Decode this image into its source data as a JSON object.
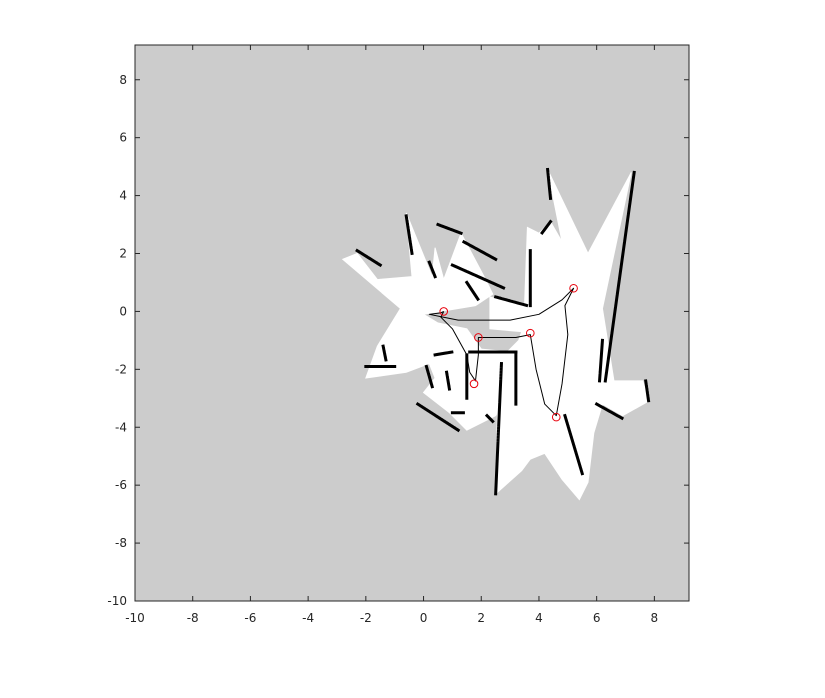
{
  "chart_data": {
    "type": "scatter",
    "title": "",
    "xlabel": "",
    "ylabel": "",
    "xlim": [
      -10,
      9.2
    ],
    "ylim": [
      -10,
      9.2
    ],
    "x_ticks": [
      -10,
      -8,
      -6,
      -4,
      -2,
      0,
      2,
      4,
      6,
      8
    ],
    "y_ticks": [
      -10,
      -8,
      -6,
      -4,
      -2,
      0,
      2,
      4,
      6,
      8
    ],
    "grid": false,
    "colors": {
      "unknown": "#cccccc",
      "free": "#ffffff",
      "occupied": "#000000",
      "path": "#000000",
      "waypoint": "#e8000b",
      "axis": "#262626"
    },
    "free_space": [
      [
        [
          0,
          -0.1
        ],
        [
          1.8,
          0.2
        ],
        [
          2.4,
          0.6
        ],
        [
          2.1,
          1.2
        ],
        [
          1.3,
          2.7
        ],
        [
          0.7,
          1.1
        ],
        [
          0.4,
          2.2
        ],
        [
          0.3,
          1.2
        ],
        [
          -0.6,
          3.4
        ],
        [
          -0.4,
          1.2
        ],
        [
          -1.6,
          1.1
        ],
        [
          -2.3,
          2.0
        ],
        [
          -2.8,
          1.8
        ],
        [
          -0.8,
          0.1
        ],
        [
          -1.6,
          -1.2
        ],
        [
          -2.0,
          -2.3
        ],
        [
          -0.6,
          -2.1
        ],
        [
          0.2,
          -1.8
        ],
        [
          0.4,
          -2.3
        ],
        [
          0,
          -2.8
        ],
        [
          0.9,
          -3.5
        ],
        [
          1.5,
          -4.1
        ],
        [
          2.5,
          -3.6
        ],
        [
          3,
          -2.7
        ],
        [
          3,
          -1.4
        ],
        [
          2,
          -1.3
        ],
        [
          1.5,
          -0.6
        ],
        [
          0.5,
          -0.4
        ]
      ],
      [
        [
          2.3,
          0.5
        ],
        [
          3.5,
          0.2
        ],
        [
          3.6,
          2.9
        ],
        [
          4.0,
          2.7
        ],
        [
          4.4,
          3.1
        ],
        [
          4.8,
          2.4
        ],
        [
          4.3,
          4.9
        ],
        [
          5.7,
          2.0
        ],
        [
          7.2,
          4.8
        ],
        [
          6.2,
          0.1
        ],
        [
          6.6,
          -2.4
        ],
        [
          7.6,
          -2.4
        ],
        [
          7.8,
          -3.1
        ],
        [
          6.9,
          -3.6
        ],
        [
          6.2,
          -3.2
        ],
        [
          5.9,
          -4.2
        ],
        [
          5.7,
          -5.9
        ],
        [
          5.4,
          -6.5
        ],
        [
          4.8,
          -5.8
        ],
        [
          4.2,
          -4.9
        ],
        [
          3.7,
          -5.1
        ],
        [
          3.4,
          -5.5
        ],
        [
          2.5,
          -6.3
        ],
        [
          2.6,
          -1.7
        ],
        [
          3.3,
          -1.0
        ],
        [
          3.4,
          -0.7
        ],
        [
          2.3,
          -0.6
        ]
      ]
    ],
    "walls": [
      [
        [
          3.7,
          2.1
        ],
        [
          3.7,
          0.2
        ]
      ],
      [
        [
          4.4,
          3.1
        ],
        [
          4.1,
          2.7
        ]
      ],
      [
        [
          7.3,
          4.8
        ],
        [
          6.3,
          -2.4
        ]
      ],
      [
        [
          6.2,
          -1.0
        ],
        [
          6.1,
          -2.4
        ]
      ],
      [
        [
          2.5,
          0.5
        ],
        [
          3.6,
          0.2
        ]
      ],
      [
        [
          1.6,
          -1.4
        ],
        [
          3.2,
          -1.4
        ]
      ],
      [
        [
          3.2,
          -1.4
        ],
        [
          3.2,
          -3.2
        ]
      ],
      [
        [
          2.7,
          -1.8
        ],
        [
          2.5,
          -6.3
        ]
      ],
      [
        [
          0.4,
          -1.5
        ],
        [
          1.0,
          -1.4
        ]
      ],
      [
        [
          1.5,
          -1.5
        ],
        [
          1.5,
          -3.0
        ]
      ],
      [
        [
          -2.0,
          -1.9
        ],
        [
          -1.0,
          -1.9
        ]
      ],
      [
        [
          -0.2,
          -3.2
        ],
        [
          1.2,
          -4.1
        ]
      ],
      [
        [
          1.0,
          -3.5
        ],
        [
          1.4,
          -3.5
        ]
      ],
      [
        [
          2.2,
          -3.6
        ],
        [
          2.4,
          -3.8
        ]
      ],
      [
        [
          4.9,
          -3.6
        ],
        [
          5.5,
          -5.6
        ]
      ],
      [
        [
          6.0,
          -3.2
        ],
        [
          6.9,
          -3.7
        ]
      ],
      [
        [
          7.7,
          -2.4
        ],
        [
          7.8,
          -3.1
        ]
      ],
      [
        [
          -0.6,
          3.3
        ],
        [
          -0.4,
          2.0
        ]
      ],
      [
        [
          0.5,
          3.0
        ],
        [
          1.3,
          2.7
        ]
      ],
      [
        [
          1.4,
          2.4
        ],
        [
          2.5,
          1.8
        ]
      ],
      [
        [
          1.0,
          1.6
        ],
        [
          2.8,
          0.8
        ]
      ],
      [
        [
          -2.3,
          2.1
        ],
        [
          -1.5,
          1.6
        ]
      ],
      [
        [
          0.2,
          1.7
        ],
        [
          0.4,
          1.2
        ]
      ],
      [
        [
          4.3,
          4.9
        ],
        [
          4.4,
          3.9
        ]
      ],
      [
        [
          -1.4,
          -1.2
        ],
        [
          -1.3,
          -1.7
        ]
      ],
      [
        [
          1.5,
          1.0
        ],
        [
          1.9,
          0.4
        ]
      ],
      [
        [
          0.8,
          -2.1
        ],
        [
          0.9,
          -2.7
        ]
      ],
      [
        [
          0.1,
          -1.9
        ],
        [
          0.3,
          -2.6
        ]
      ]
    ],
    "path": [
      [
        0.7,
        0.0
      ],
      [
        0.6,
        -0.05
      ],
      [
        0.2,
        -0.1
      ],
      [
        0.7,
        -0.2
      ],
      [
        1.2,
        -0.3
      ],
      [
        2.0,
        -0.3
      ],
      [
        3.0,
        -0.3
      ],
      [
        4.0,
        -0.1
      ],
      [
        4.8,
        0.4
      ],
      [
        5.2,
        0.8
      ],
      [
        4.9,
        0.2
      ],
      [
        5.0,
        -0.8
      ],
      [
        4.8,
        -2.5
      ],
      [
        4.6,
        -3.6
      ],
      [
        4.2,
        -3.2
      ],
      [
        3.9,
        -2.0
      ],
      [
        3.7,
        -0.8
      ],
      [
        3.2,
        -0.9
      ],
      [
        2.4,
        -0.9
      ],
      [
        1.9,
        -0.9
      ],
      [
        1.9,
        -1.5
      ],
      [
        1.8,
        -2.4
      ],
      [
        1.6,
        -2.1
      ],
      [
        1.5,
        -1.5
      ],
      [
        1.0,
        -0.6
      ],
      [
        0.6,
        -0.2
      ],
      [
        0.7,
        0.0
      ]
    ],
    "waypoints": [
      [
        0.7,
        0.0
      ],
      [
        5.2,
        0.8
      ],
      [
        3.7,
        -0.75
      ],
      [
        1.9,
        -0.9
      ],
      [
        1.75,
        -2.5
      ],
      [
        4.6,
        -3.65
      ]
    ]
  }
}
